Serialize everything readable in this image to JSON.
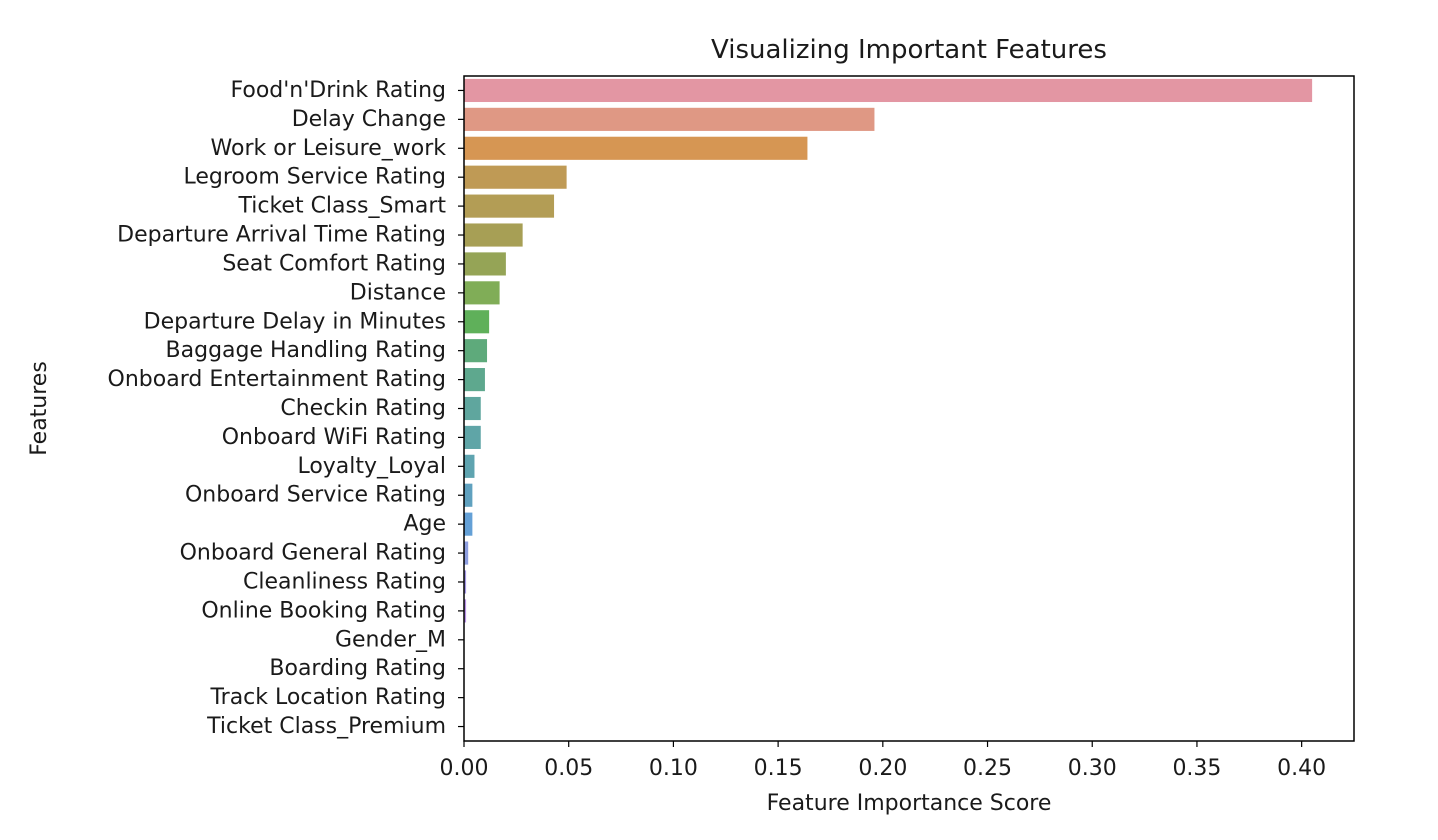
{
  "chart_data": {
    "type": "bar",
    "orientation": "horizontal",
    "title": "Visualizing Important Features",
    "xlabel": "Feature Importance Score",
    "ylabel": "Features",
    "xlim": [
      0,
      0.425
    ],
    "xticks": [
      "0.00",
      "0.05",
      "0.10",
      "0.15",
      "0.20",
      "0.25",
      "0.30",
      "0.35",
      "0.40"
    ],
    "grid": false,
    "legend": "none",
    "categories": [
      "Food'n'Drink Rating",
      "Delay Change",
      "Work or Leisure_work",
      "Legroom Service Rating",
      "Ticket Class_Smart",
      "Departure Arrival Time Rating",
      "Seat Comfort Rating",
      "Distance",
      "Departure Delay in Minutes",
      "Baggage Handling Rating",
      "Onboard Entertainment Rating",
      "Checkin Rating",
      "Onboard WiFi Rating",
      "Loyalty_Loyal",
      "Onboard Service Rating",
      "Age",
      "Onboard General Rating",
      "Cleanliness Rating",
      "Online Booking Rating",
      "Gender_M",
      "Boarding Rating",
      "Track Location Rating",
      "Ticket Class_Premium"
    ],
    "values": [
      0.405,
      0.196,
      0.164,
      0.049,
      0.043,
      0.028,
      0.02,
      0.017,
      0.012,
      0.011,
      0.01,
      0.008,
      0.008,
      0.005,
      0.004,
      0.004,
      0.002,
      0.001,
      0.001,
      0.0,
      0.0,
      0.0,
      0.0
    ],
    "colors": [
      "#e396a3",
      "#df9884",
      "#d69653",
      "#bf9a55",
      "#b39d55",
      "#a79f55",
      "#95a456",
      "#80ad57",
      "#5fb05a",
      "#5eaa7b",
      "#5ea88e",
      "#5fa69e",
      "#5fa5a7",
      "#5fa4b0",
      "#60a1bf",
      "#64a0d6",
      "#8d9ee0",
      "#a396e5",
      "#b78fe6",
      "#c88be4",
      "#d98adc",
      "#e08cd0",
      "#e692c0"
    ]
  }
}
